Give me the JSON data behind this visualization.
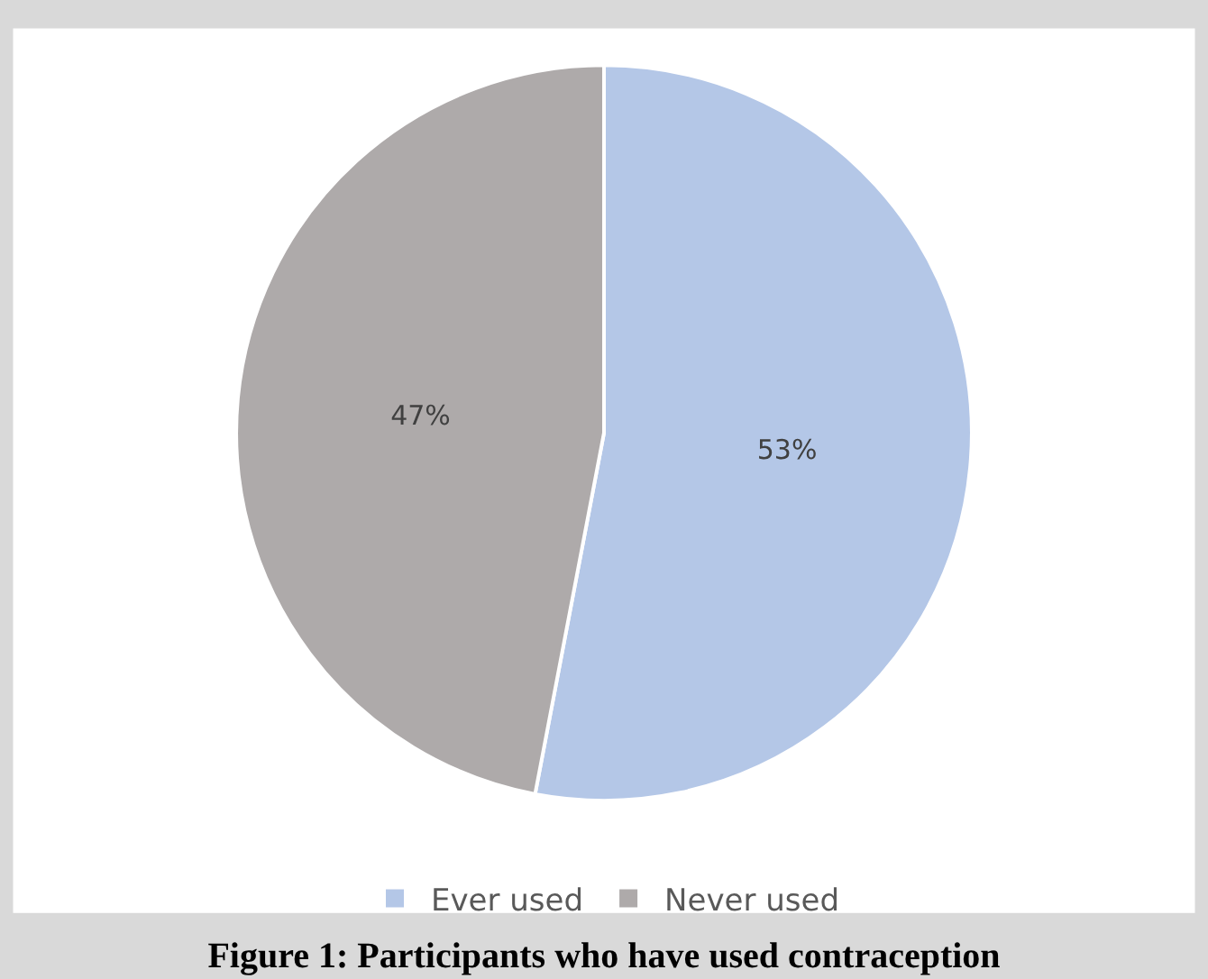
{
  "chart_data": {
    "type": "pie",
    "title": "Figure 1: Participants who have used contraception",
    "categories": [
      "Ever used",
      "Never used"
    ],
    "values": [
      53,
      47
    ],
    "colors": [
      "#b4c7e7",
      "#aeaaaa"
    ],
    "value_labels": [
      "53%",
      "47%"
    ],
    "legend": "bottom"
  }
}
